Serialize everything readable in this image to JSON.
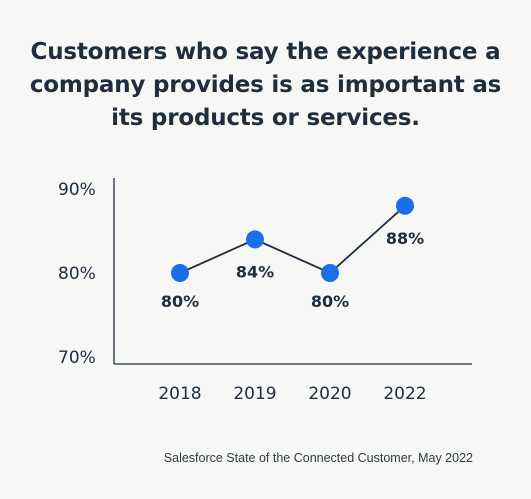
{
  "title_lines": [
    "Customers who say the experience a",
    "company provides is as important as",
    "its products or services."
  ],
  "source": "Salesforce State of the Connected Customer, May 2022",
  "colors": {
    "point": "#1a6ee8",
    "line": "#1f2d3d",
    "text": "#1f2d3d",
    "background": "#f7f7f5"
  },
  "chart_data": {
    "type": "line",
    "categories": [
      "2018",
      "2019",
      "2020",
      "2022"
    ],
    "values": [
      80,
      84,
      80,
      88
    ],
    "data_labels": [
      "80%",
      "84%",
      "80%",
      "88%"
    ],
    "yticks": [
      "70%",
      "80%",
      "90%"
    ],
    "ylim": [
      70,
      90
    ],
    "grid": false
  }
}
